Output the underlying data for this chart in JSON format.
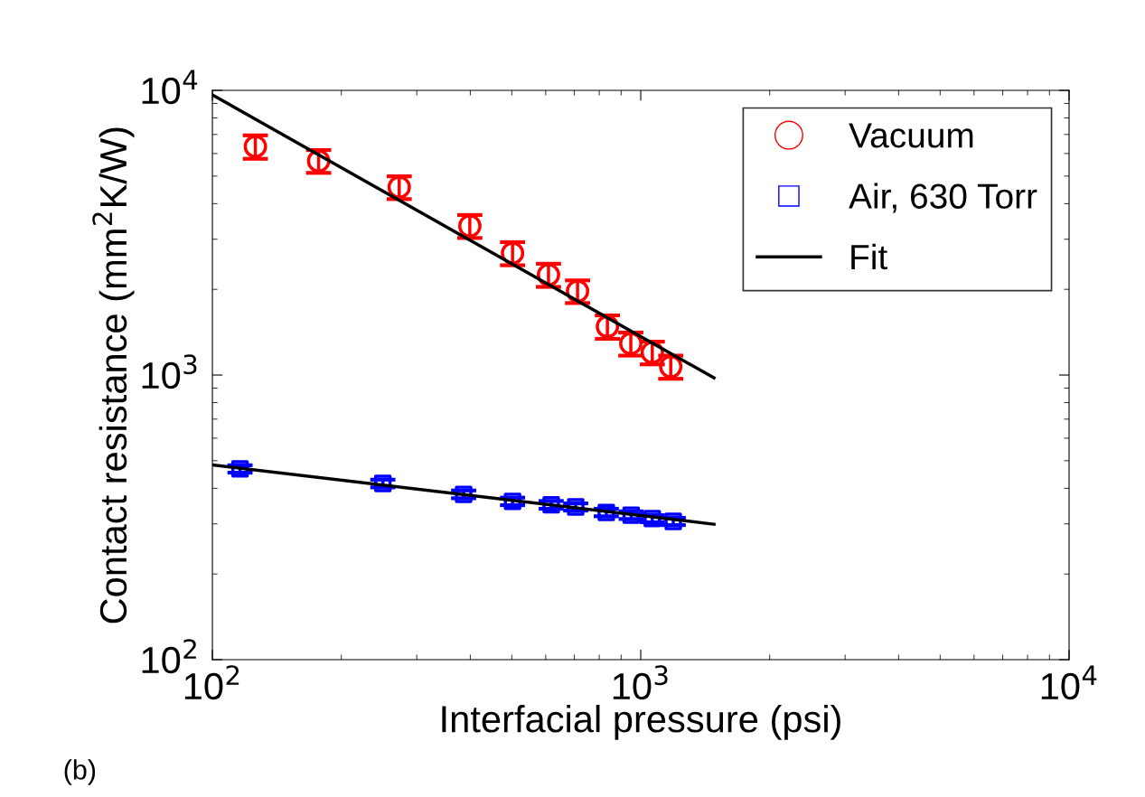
{
  "chart_data": {
    "type": "scatter",
    "xlabel": "Interfacial pressure (psi)",
    "ylabel": "Contact resistance (mm$^{2}$K/W)",
    "log": "xy",
    "xlim": [
      100,
      10000
    ],
    "ylim": [
      100,
      10000
    ],
    "xticks": [
      {
        "value": 100,
        "label": "10$^{2}$"
      },
      {
        "value": 1000,
        "label": "10$^{3}$"
      },
      {
        "value": 10000,
        "label": "10$^{4}$"
      }
    ],
    "yticks": [
      {
        "value": 100,
        "label": "10$^{2}$"
      },
      {
        "value": 1000,
        "label": "10$^{3}$"
      },
      {
        "value": 10000,
        "label": "10$^{4}$"
      }
    ],
    "grid": false,
    "legend": "top right",
    "annotations": [
      "(b)"
    ],
    "series": [
      {
        "name": "Vacuum",
        "marker": "circle",
        "color": "#ff0000",
        "x": [
          126,
          177,
          273,
          399,
          502,
          609,
          712,
          836,
          948,
          1064,
          1175
        ],
        "values": [
          6350,
          5650,
          4570,
          3340,
          2680,
          2250,
          1970,
          1480,
          1290,
          1200,
          1070
        ],
        "errors": [
          600,
          520,
          420,
          310,
          250,
          210,
          180,
          140,
          120,
          110,
          100
        ]
      },
      {
        "name": "Air, 630 Torr",
        "marker": "square",
        "color": "#0000ff",
        "x": [
          116,
          250,
          386,
          502,
          618,
          705,
          831,
          950,
          1064,
          1191
        ],
        "values": [
          468,
          416,
          381,
          360,
          350,
          344,
          329,
          322,
          313,
          306
        ],
        "errors": [
          14,
          13,
          12,
          11,
          11,
          10,
          10,
          10,
          9,
          9
        ]
      },
      {
        "name": "Fit",
        "type": "line",
        "marker": "none",
        "line_style": "solid",
        "color": "#000000",
        "x": [
          100,
          1483
        ],
        "values": [
          9640,
          977
        ]
      },
      {
        "type": "line",
        "marker": "none",
        "line_style": "solid",
        "color": "#000000",
        "x": [
          100,
          1483
        ],
        "values": [
          483,
          299
        ]
      }
    ]
  }
}
